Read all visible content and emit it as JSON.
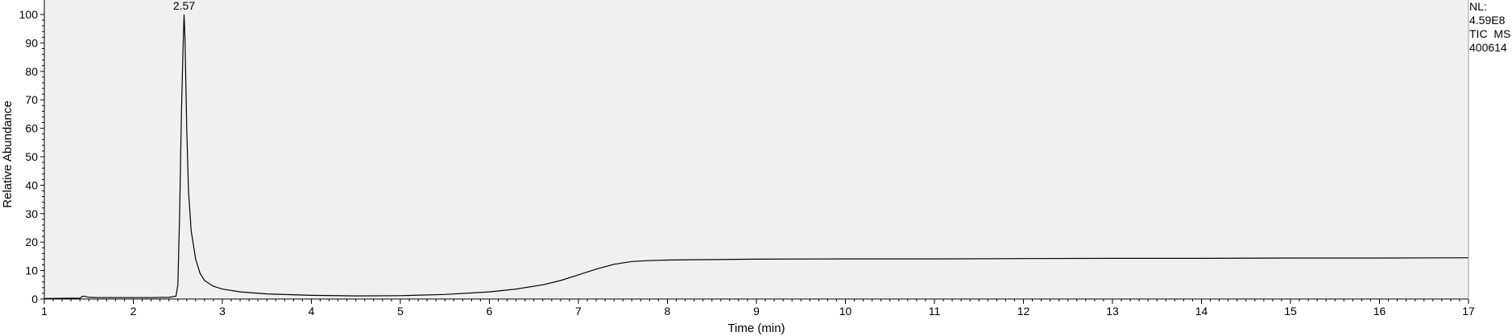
{
  "chart_data": {
    "type": "line",
    "title": "",
    "xlabel": "Time (min)",
    "ylabel": "Relative Abundance",
    "xlim": [
      1,
      17
    ],
    "ylim": [
      0,
      100
    ],
    "x_ticks": [
      1,
      2,
      3,
      4,
      5,
      6,
      7,
      8,
      9,
      10,
      11,
      12,
      13,
      14,
      15,
      16,
      17
    ],
    "y_ticks": [
      0,
      10,
      20,
      30,
      40,
      50,
      60,
      70,
      80,
      90,
      100
    ],
    "grid": false,
    "background": "#f0f0f0",
    "line_color": "#000000",
    "series": [
      {
        "x": [
          1.0,
          1.4,
          1.43,
          1.46,
          1.5,
          1.6,
          1.8,
          2.0,
          2.2,
          2.4,
          2.48,
          2.5,
          2.52,
          2.54,
          2.56,
          2.57,
          2.58,
          2.6,
          2.62,
          2.65,
          2.7,
          2.75,
          2.8,
          2.9,
          3.0,
          3.2,
          3.5,
          4.0,
          4.5,
          5.0,
          5.5,
          6.0,
          6.3,
          6.6,
          6.8,
          7.0,
          7.2,
          7.4,
          7.6,
          7.8,
          8.0,
          9.0,
          10.0,
          11.0,
          12.0,
          13.0,
          14.0,
          15.0,
          16.0,
          17.0
        ],
        "y": [
          0.2,
          0.3,
          1.0,
          0.9,
          0.6,
          0.5,
          0.5,
          0.5,
          0.5,
          0.6,
          1.0,
          5.0,
          30.0,
          65.0,
          90.0,
          100.0,
          92.0,
          60.0,
          38.0,
          24.0,
          14.0,
          9.0,
          6.5,
          4.5,
          3.5,
          2.5,
          1.8,
          1.3,
          1.1,
          1.2,
          1.6,
          2.5,
          3.5,
          5.0,
          6.5,
          8.5,
          10.5,
          12.2,
          13.2,
          13.5,
          13.7,
          14.0,
          14.1,
          14.1,
          14.2,
          14.3,
          14.3,
          14.4,
          14.4,
          14.5
        ]
      }
    ],
    "annotations": [
      {
        "text": "2.57",
        "x": 2.57,
        "y": 100
      }
    ]
  },
  "info": {
    "nl_label": "NL:",
    "nl_value": "4.59E8",
    "filter": "TIC  MS",
    "sample": "400614"
  }
}
